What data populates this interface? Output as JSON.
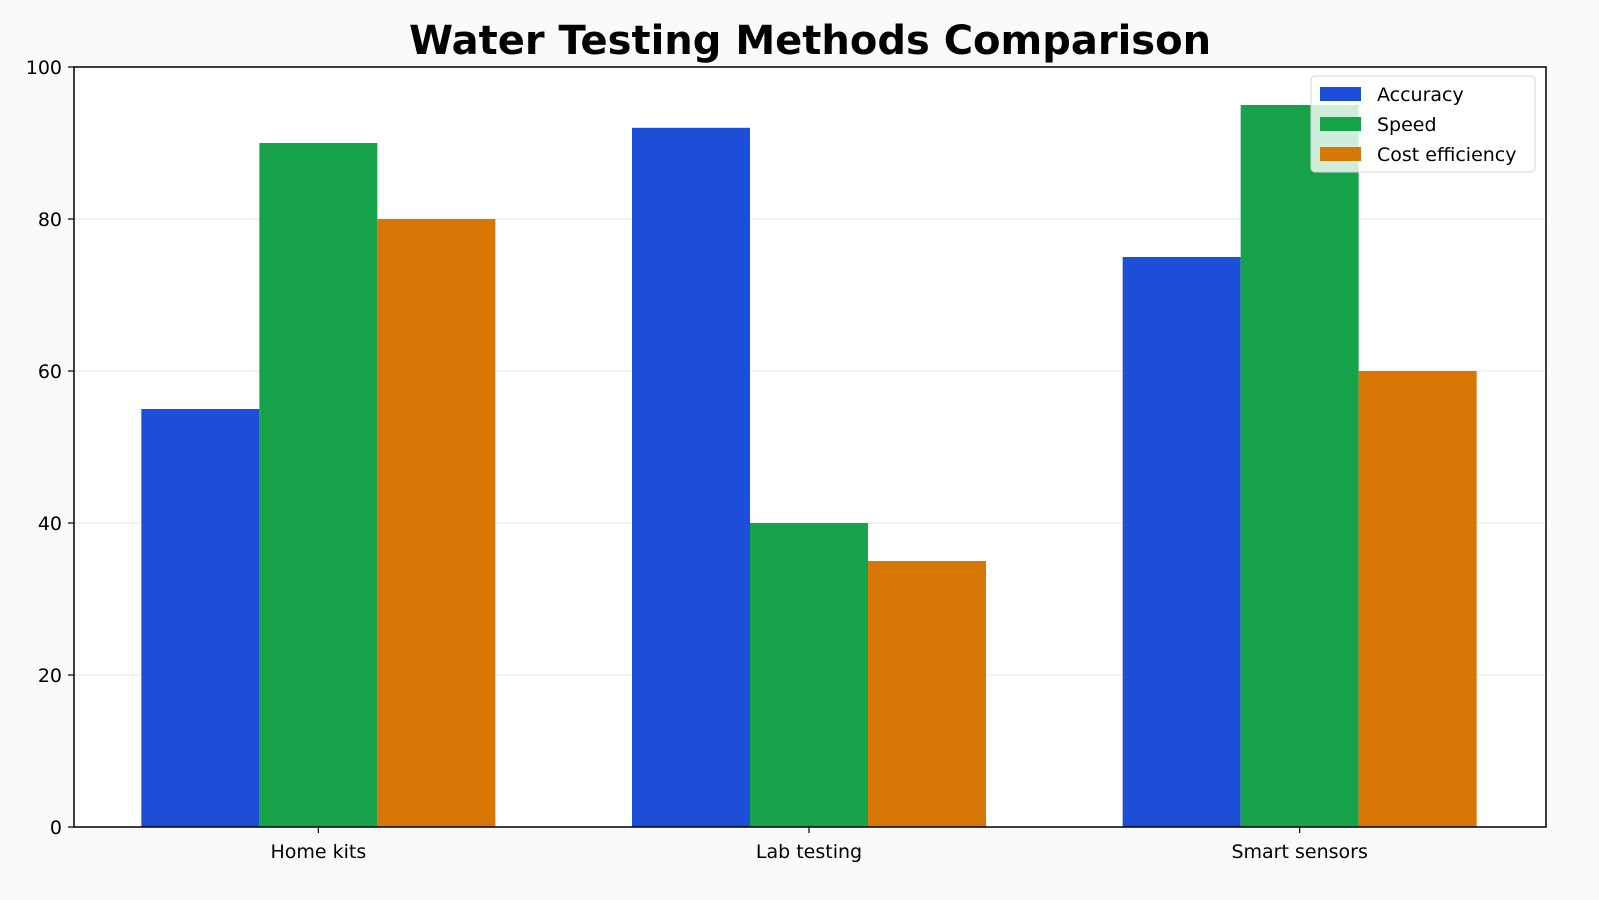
{
  "chart_data": {
    "type": "bar",
    "title": "Water Testing Methods Comparison",
    "xlabel": "",
    "ylabel": "",
    "categories": [
      "Home kits",
      "Lab testing",
      "Smart sensors"
    ],
    "series": [
      {
        "name": "Accuracy",
        "values": [
          55,
          92,
          75
        ],
        "color": "#1d4ed8"
      },
      {
        "name": "Speed",
        "values": [
          90,
          40,
          95
        ],
        "color": "#16a34a"
      },
      {
        "name": "Cost efficiency",
        "values": [
          80,
          35,
          60
        ],
        "color": "#d97706"
      }
    ],
    "ylim": [
      0,
      100
    ],
    "yticks": [
      0,
      20,
      40,
      60,
      80,
      100
    ],
    "grid": true,
    "legend": "top-right"
  }
}
